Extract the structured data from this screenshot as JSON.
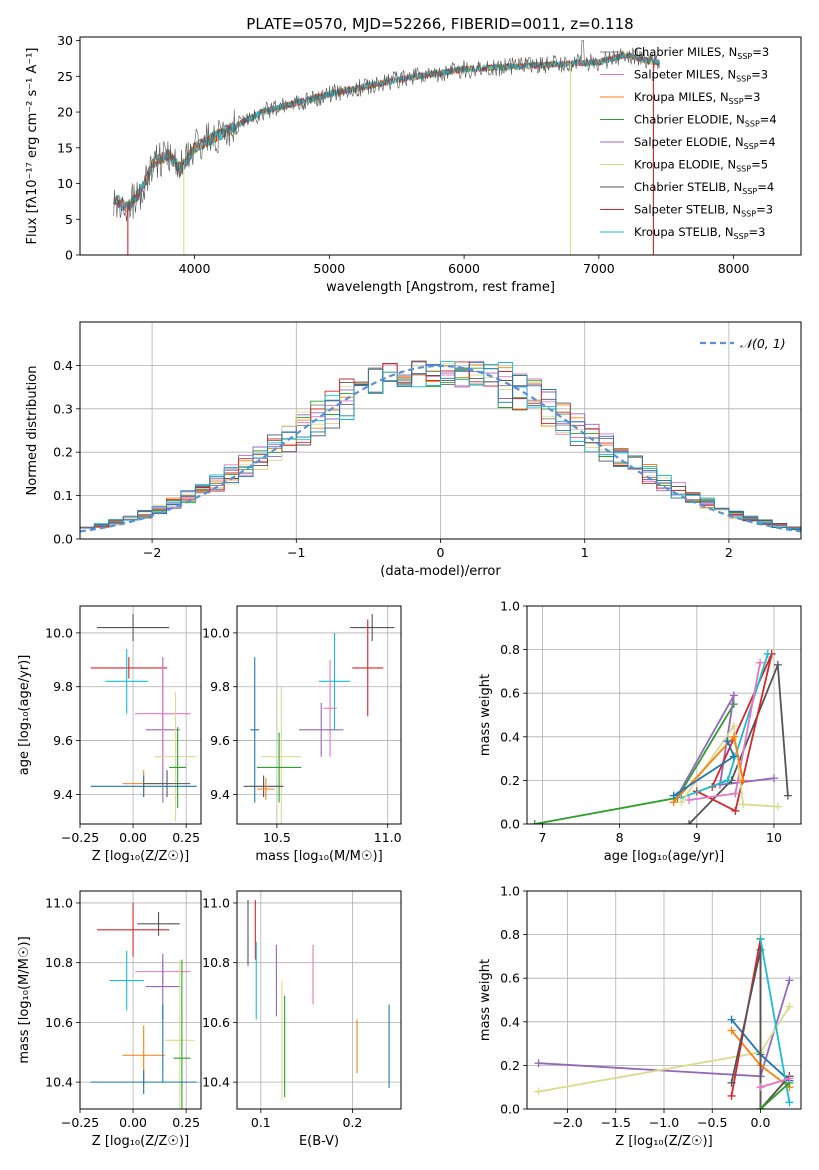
{
  "title": "PLATE=0570, MJD=52266, FIBERID=0011, z=0.118",
  "colors": [
    "#7f7f7f",
    "#e377c2",
    "#ff7f0e",
    "#2ca02c",
    "#9467bd",
    "#dbdb8d",
    "#555555",
    "#d62728",
    "#17becf",
    "#1f77b4",
    "#8c564b"
  ],
  "legend_labels": [
    "Chabrier MILES, N_SSP=3",
    "Salpeter MILES, N_SSP=3",
    "Kroupa MILES, N_SSP=3",
    "Chabrier ELODIE, N_SSP=4",
    "Salpeter ELODIE, N_SSP=4",
    "Kroupa ELODIE, N_SSP=5",
    "Chabrier STELIB, N_SSP=4",
    "Salpeter STELIB, N_SSP=3",
    "Kroupa STELIB, N_SSP=3"
  ],
  "chart_data": [
    {
      "id": "spectrum",
      "type": "line",
      "xlabel": "wavelength [Angstrom, rest frame]",
      "ylabel": "Flux [fλ10⁻¹⁷ erg cm⁻² s⁻¹ A⁻¹]",
      "xlim": [
        3150,
        8500
      ],
      "ylim": [
        0,
        30.5
      ],
      "xticks": [
        4000,
        5000,
        6000,
        7000,
        8000
      ],
      "yticks": [
        0,
        5,
        10,
        15,
        20,
        25,
        30
      ],
      "grid": false,
      "legend": "right",
      "continuum_knots": [
        [
          3400,
          8
        ],
        [
          3500,
          6.5
        ],
        [
          3600,
          9
        ],
        [
          3700,
          13
        ],
        [
          3800,
          14
        ],
        [
          3900,
          12
        ],
        [
          4000,
          15
        ],
        [
          4200,
          17
        ],
        [
          4500,
          20
        ],
        [
          5000,
          22.5
        ],
        [
          5500,
          24.5
        ],
        [
          6000,
          26
        ],
        [
          6500,
          26.5
        ],
        [
          7000,
          27
        ],
        [
          7200,
          28
        ],
        [
          7400,
          27
        ]
      ]
    },
    {
      "id": "residuals",
      "type": "line",
      "xlabel": "(data-model)/error",
      "ylabel": "Normed distribution",
      "xlim": [
        -2.5,
        2.5
      ],
      "ylim": [
        0,
        0.5
      ],
      "xticks": [
        -2,
        -1,
        0,
        1,
        2
      ],
      "yticks": [
        0.0,
        0.1,
        0.2,
        0.3,
        0.4
      ],
      "grid": true,
      "legend": "top-right",
      "reference_label": "𝒩(0, 1)"
    },
    {
      "id": "Z_vs_age",
      "type": "scatter",
      "xlabel": "Z [log₁₀(Z/Z☉)]",
      "ylabel": "age  [log₁₀(age/yr)]",
      "xlim": [
        -0.25,
        0.32
      ],
      "ylim": [
        9.29,
        10.1
      ],
      "xticks": [
        -0.25,
        0.0,
        0.25
      ],
      "yticks": [
        9.4,
        9.6,
        9.8,
        10.0
      ],
      "points": [
        {
          "x": 0.0,
          "y": 10.02,
          "xe": 0.17,
          "ye": 0.05,
          "c": 6
        },
        {
          "x": -0.02,
          "y": 9.87,
          "xe": 0.18,
          "ye": 0.04,
          "c": 7
        },
        {
          "x": -0.03,
          "y": 9.82,
          "xe": 0.1,
          "ye": 0.12,
          "c": 8
        },
        {
          "x": 0.14,
          "y": 9.64,
          "xe": 0.08,
          "ye": 0.27,
          "c": 4
        },
        {
          "x": 0.14,
          "y": 9.7,
          "xe": 0.13,
          "ye": 0.2,
          "c": 1
        },
        {
          "x": 0.2,
          "y": 9.54,
          "xe": 0.1,
          "ye": 0.24,
          "c": 5
        },
        {
          "x": 0.21,
          "y": 9.5,
          "xe": 0.04,
          "ye": 0.15,
          "c": 3
        },
        {
          "x": 0.05,
          "y": 9.44,
          "xe": 0.1,
          "ye": 0.05,
          "c": 2
        },
        {
          "x": 0.05,
          "y": 9.43,
          "xe": 0.25,
          "ye": 0.04,
          "c": 9
        },
        {
          "x": 0.16,
          "y": 9.44,
          "xe": 0.11,
          "ye": 0.05,
          "c": 6
        }
      ]
    },
    {
      "id": "mass_vs_age",
      "type": "scatter",
      "xlabel": "mass [log₁₀(M/M☉)]",
      "ylabel": "",
      "xlim": [
        10.32,
        11.06
      ],
      "ylim": [
        9.29,
        10.1
      ],
      "xticks": [
        10.5,
        11.0
      ],
      "yticks": [
        9.4,
        9.6,
        9.8,
        10.0
      ],
      "points": [
        {
          "x": 10.93,
          "y": 10.02,
          "xe": 0.1,
          "ye": 0.05,
          "c": 6
        },
        {
          "x": 10.91,
          "y": 9.87,
          "xe": 0.07,
          "ye": 0.18,
          "c": 7
        },
        {
          "x": 10.76,
          "y": 9.82,
          "xe": 0.07,
          "ye": 0.18,
          "c": 8
        },
        {
          "x": 10.74,
          "y": 9.72,
          "xe": 0.03,
          "ye": 0.18,
          "c": 1
        },
        {
          "x": 10.7,
          "y": 9.64,
          "xe": 0.1,
          "ye": 0.1,
          "c": 4
        },
        {
          "x": 10.52,
          "y": 9.54,
          "xe": 0.09,
          "ye": 0.26,
          "c": 5
        },
        {
          "x": 10.51,
          "y": 9.5,
          "xe": 0.1,
          "ye": 0.13,
          "c": 3
        },
        {
          "x": 10.4,
          "y": 9.64,
          "xe": 0.02,
          "ye": 0.27,
          "c": 9
        },
        {
          "x": 10.44,
          "y": 9.43,
          "xe": 0.09,
          "ye": 0.04,
          "c": 6
        },
        {
          "x": 10.45,
          "y": 9.42,
          "xe": 0.04,
          "ye": 0.04,
          "c": 2
        }
      ]
    },
    {
      "id": "age_vs_weight",
      "type": "line",
      "xlabel": "age  [log₁₀(age/yr)]",
      "ylabel": "mass weight",
      "xlim": [
        6.8,
        10.35
      ],
      "ylim": [
        0,
        1
      ],
      "xticks": [
        7,
        8,
        9,
        10
      ],
      "yticks": [
        0.0,
        0.2,
        0.4,
        0.6,
        0.8,
        1.0
      ],
      "grid": true,
      "series": [
        {
          "c": 3,
          "pts": [
            [
              6.9,
              0.0
            ],
            [
              8.75,
              0.12
            ],
            [
              9.48,
              0.55
            ]
          ]
        },
        {
          "c": 4,
          "pts": [
            [
              8.75,
              0.13
            ],
            [
              9.48,
              0.59
            ],
            [
              9.3,
              0.18
            ],
            [
              10.0,
              0.21
            ]
          ]
        },
        {
          "c": 6,
          "pts": [
            [
              8.9,
              0.0
            ],
            [
              9.45,
              0.2
            ],
            [
              10.05,
              0.73
            ],
            [
              10.18,
              0.13
            ]
          ]
        },
        {
          "c": 7,
          "pts": [
            [
              9.0,
              0.15
            ],
            [
              9.5,
              0.06
            ],
            [
              9.97,
              0.78
            ],
            [
              9.2,
              0.17
            ]
          ]
        },
        {
          "c": 8,
          "pts": [
            [
              8.8,
              0.12
            ],
            [
              9.4,
              0.2
            ],
            [
              9.92,
              0.78
            ]
          ]
        },
        {
          "c": 1,
          "pts": [
            [
              8.9,
              0.11
            ],
            [
              9.5,
              0.14
            ],
            [
              9.82,
              0.74
            ]
          ]
        },
        {
          "c": 5,
          "pts": [
            [
              8.8,
              0.1
            ],
            [
              9.48,
              0.45
            ],
            [
              9.6,
              0.09
            ],
            [
              10.05,
              0.08
            ]
          ]
        },
        {
          "c": 2,
          "pts": [
            [
              8.7,
              0.1
            ],
            [
              9.48,
              0.4
            ],
            [
              9.6,
              0.2
            ]
          ]
        },
        {
          "c": 9,
          "pts": [
            [
              8.7,
              0.13
            ],
            [
              9.48,
              0.31
            ],
            [
              9.4,
              0.38
            ]
          ]
        }
      ]
    },
    {
      "id": "Z_vs_mass",
      "type": "scatter",
      "xlabel": "Z [log₁₀(Z/Z☉)]",
      "ylabel": "mass [log₁₀(M/M☉)]",
      "xlim": [
        -0.25,
        0.32
      ],
      "ylim": [
        10.31,
        11.04
      ],
      "xticks": [
        -0.25,
        0.0,
        0.25
      ],
      "yticks": [
        10.4,
        10.6,
        10.8,
        11.0
      ],
      "points": [
        {
          "x": 0.12,
          "y": 10.93,
          "xe": 0.1,
          "ye": 0.04,
          "c": 6
        },
        {
          "x": 0.0,
          "y": 10.91,
          "xe": 0.17,
          "ye": 0.09,
          "c": 7
        },
        {
          "x": -0.03,
          "y": 10.74,
          "xe": 0.08,
          "ye": 0.1,
          "c": 8
        },
        {
          "x": 0.14,
          "y": 10.77,
          "xe": 0.13,
          "ye": 0.04,
          "c": 1
        },
        {
          "x": 0.14,
          "y": 10.72,
          "xe": 0.08,
          "ye": 0.11,
          "c": 4
        },
        {
          "x": 0.22,
          "y": 10.54,
          "xe": 0.07,
          "ye": 0.27,
          "c": 5
        },
        {
          "x": 0.23,
          "y": 10.48,
          "xe": 0.04,
          "ye": 0.33,
          "c": 3
        },
        {
          "x": 0.05,
          "y": 10.49,
          "xe": 0.1,
          "ye": 0.1,
          "c": 2
        },
        {
          "x": 0.05,
          "y": 10.4,
          "xe": 0.25,
          "ye": 0.04,
          "c": 9
        },
        {
          "x": 0.14,
          "y": 10.53,
          "xe": 0.0,
          "ye": 0.13,
          "c": 9
        }
      ]
    },
    {
      "id": "ebv_vs_mass",
      "type": "scatter",
      "xlabel": "E(B-V)",
      "ylabel": "",
      "xlim": [
        0.074,
        0.253
      ],
      "ylim": [
        10.31,
        11.04
      ],
      "xticks": [
        0.1,
        0.2
      ],
      "yticks": [
        10.4,
        10.6,
        10.8,
        11.0
      ],
      "points": [
        {
          "x": 0.086,
          "y": 10.9,
          "xe": 0,
          "ye": 0.11,
          "c": 6
        },
        {
          "x": 0.094,
          "y": 10.91,
          "xe": 0,
          "ye": 0.1,
          "c": 7
        },
        {
          "x": 0.095,
          "y": 10.74,
          "xe": 0,
          "ye": 0.13,
          "c": 8
        },
        {
          "x": 0.117,
          "y": 10.74,
          "xe": 0,
          "ye": 0.12,
          "c": 4
        },
        {
          "x": 0.123,
          "y": 10.54,
          "xe": 0,
          "ye": 0.2,
          "c": 5
        },
        {
          "x": 0.126,
          "y": 10.52,
          "xe": 0,
          "ye": 0.17,
          "c": 3
        },
        {
          "x": 0.157,
          "y": 10.76,
          "xe": 0,
          "ye": 0.1,
          "c": 1
        },
        {
          "x": 0.205,
          "y": 10.52,
          "xe": 0,
          "ye": 0.09,
          "c": 2
        },
        {
          "x": 0.24,
          "y": 10.52,
          "xe": 0,
          "ye": 0.14,
          "c": 9
        }
      ]
    },
    {
      "id": "Z_vs_weight",
      "type": "line",
      "xlabel": "Z [log₁₀(Z/Z☉)]",
      "ylabel": "mass weight",
      "xlim": [
        -2.42,
        0.42
      ],
      "ylim": [
        0,
        1
      ],
      "xticks": [
        -2.0,
        -1.5,
        -1.0,
        -0.5,
        0.0
      ],
      "yticks": [
        0.0,
        0.2,
        0.4,
        0.6,
        0.8,
        1.0
      ],
      "grid": true,
      "series": [
        {
          "c": 4,
          "pts": [
            [
              -2.3,
              0.21
            ],
            [
              0.0,
              0.15
            ],
            [
              0.3,
              0.59
            ]
          ]
        },
        {
          "c": 5,
          "pts": [
            [
              -2.3,
              0.08
            ],
            [
              0.0,
              0.26
            ],
            [
              0.3,
              0.47
            ]
          ]
        },
        {
          "c": 2,
          "pts": [
            [
              -0.3,
              0.36
            ],
            [
              0.0,
              0.2
            ],
            [
              0.3,
              0.1
            ]
          ]
        },
        {
          "c": 9,
          "pts": [
            [
              -0.3,
              0.41
            ],
            [
              0.0,
              0.25
            ],
            [
              0.3,
              0.13
            ]
          ]
        },
        {
          "c": 7,
          "pts": [
            [
              -0.3,
              0.06
            ],
            [
              0.0,
              0.78
            ],
            [
              0.0,
              0.0
            ],
            [
              0.3,
              0.15
            ]
          ]
        },
        {
          "c": 6,
          "pts": [
            [
              -0.3,
              0.12
            ],
            [
              0.0,
              0.73
            ],
            [
              0.0,
              0.0
            ],
            [
              0.3,
              0.15
            ]
          ]
        },
        {
          "c": 8,
          "pts": [
            [
              0.0,
              0.78
            ],
            [
              0.3,
              0.03
            ]
          ]
        },
        {
          "c": 3,
          "pts": [
            [
              0.0,
              0.0
            ],
            [
              0.3,
              0.12
            ]
          ]
        },
        {
          "c": 1,
          "pts": [
            [
              0.0,
              0.1
            ],
            [
              0.3,
              0.14
            ]
          ]
        }
      ]
    }
  ]
}
